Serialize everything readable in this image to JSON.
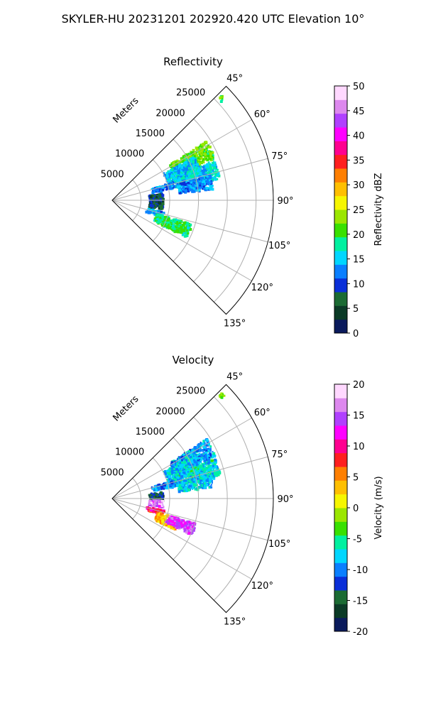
{
  "figure": {
    "suptitle": "SKYLER-HU  20231201  202920.420 UTC Elevation 10°"
  },
  "chart_data": [
    {
      "type": "heatmap",
      "subtype": "polar-ppi-sector",
      "title": "Reflectivity",
      "range_label": "Meters",
      "range_ticks": [
        5000,
        10000,
        15000,
        20000,
        25000
      ],
      "range_max": 28000,
      "azimuth_range_deg": [
        45,
        135
      ],
      "azimuth_ticks": [
        45,
        60,
        75,
        90,
        105,
        120,
        135
      ],
      "azimuth_tick_labels": [
        "45°",
        "60°",
        "75°",
        "90°",
        "105°",
        "120°",
        "135°"
      ],
      "grid": true,
      "colorbar": {
        "label": "Reflectivity dBZ",
        "range": [
          0,
          50
        ],
        "ticks": [
          0,
          5,
          10,
          15,
          20,
          25,
          30,
          35,
          40,
          45,
          50
        ],
        "stops": [
          "#0a1a5c",
          "#0b3a26",
          "#1b6b33",
          "#0a2fd8",
          "#0a7fff",
          "#00d6ff",
          "#00f0a0",
          "#38e000",
          "#9be600",
          "#f6f600",
          "#ffbf00",
          "#ff7f00",
          "#ff1f1f",
          "#ff0090",
          "#ff00ff",
          "#b040ff",
          "#dd88ee",
          "#ffd8ff"
        ]
      },
      "echoes": [
        {
          "az": 62,
          "r": 15500,
          "dr": 3800,
          "daz": 5,
          "value": 22
        },
        {
          "az": 67,
          "r": 13000,
          "dr": 3000,
          "daz": 6,
          "value": 15
        },
        {
          "az": 73,
          "r": 15000,
          "dr": 4000,
          "daz": 5,
          "value": 16
        },
        {
          "az": 79,
          "r": 14500,
          "dr": 3000,
          "daz": 4,
          "value": 13
        },
        {
          "az": 75,
          "r": 9000,
          "dr": 2000,
          "daz": 3,
          "value": 12
        },
        {
          "az": 86,
          "r": 7500,
          "dr": 1200,
          "daz": 5,
          "value": 8
        },
        {
          "az": 95,
          "r": 7500,
          "dr": 1200,
          "daz": 4,
          "value": 7
        },
        {
          "az": 105,
          "r": 7500,
          "dr": 1500,
          "daz": 3,
          "value": 14
        },
        {
          "az": 111,
          "r": 11000,
          "dr": 3200,
          "daz": 5,
          "value": 19
        },
        {
          "az": 46.5,
          "r": 26000,
          "dr": 500,
          "daz": 1,
          "value": 20
        }
      ]
    },
    {
      "type": "heatmap",
      "subtype": "polar-ppi-sector",
      "title": "Velocity",
      "range_label": "Meters",
      "range_ticks": [
        5000,
        10000,
        15000,
        20000,
        25000
      ],
      "range_max": 28000,
      "azimuth_range_deg": [
        45,
        135
      ],
      "azimuth_ticks": [
        45,
        60,
        75,
        90,
        105,
        120,
        135
      ],
      "azimuth_tick_labels": [
        "45°",
        "60°",
        "75°",
        "90°",
        "105°",
        "120°",
        "135°"
      ],
      "grid": true,
      "colorbar": {
        "label": "Velocity (m/s)",
        "range": [
          -20,
          20
        ],
        "ticks": [
          -20,
          -15,
          -10,
          -5,
          0,
          5,
          10,
          15,
          20
        ],
        "stops": [
          "#0a1a5c",
          "#0b3a26",
          "#1b6b33",
          "#0a2fd8",
          "#0a7fff",
          "#00d6ff",
          "#00f0a0",
          "#38e000",
          "#9be600",
          "#f6f600",
          "#ffbf00",
          "#ff7f00",
          "#ff1f1f",
          "#ff0090",
          "#ff00ff",
          "#b040ff",
          "#dd88ee",
          "#ffd8ff"
        ]
      },
      "echoes": [
        {
          "az": 62,
          "r": 15500,
          "dr": 3800,
          "daz": 5,
          "value": -9
        },
        {
          "az": 67,
          "r": 13000,
          "dr": 3000,
          "daz": 6,
          "value": -8
        },
        {
          "az": 73,
          "r": 15000,
          "dr": 4000,
          "daz": 5,
          "value": -7
        },
        {
          "az": 79,
          "r": 14500,
          "dr": 3000,
          "daz": 4,
          "value": -8
        },
        {
          "az": 75,
          "r": 9000,
          "dr": 2000,
          "daz": 3,
          "value": -10
        },
        {
          "az": 86,
          "r": 7500,
          "dr": 1200,
          "daz": 5,
          "value": -14
        },
        {
          "az": 95,
          "r": 7500,
          "dr": 1200,
          "daz": 4,
          "value": 16
        },
        {
          "az": 105,
          "r": 7500,
          "dr": 1500,
          "daz": 3,
          "value": 9
        },
        {
          "az": 111,
          "r": 10000,
          "dr": 2000,
          "daz": 5,
          "value": 3
        },
        {
          "az": 110,
          "r": 12500,
          "dr": 2500,
          "daz": 4,
          "value": 14
        },
        {
          "az": 46.5,
          "r": 26000,
          "dr": 500,
          "daz": 1,
          "value": -3
        }
      ]
    }
  ]
}
